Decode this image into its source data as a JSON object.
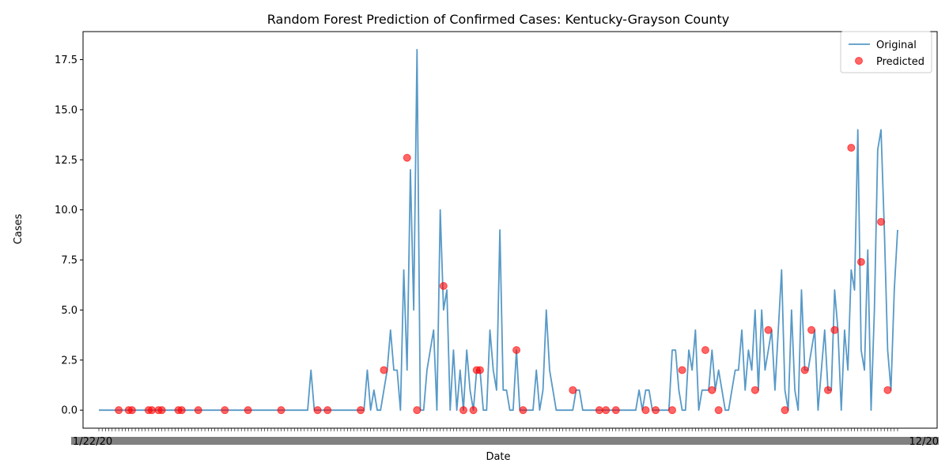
{
  "chart_data": {
    "type": "line",
    "title": "Random Forest Prediction of Confirmed Cases: Kentucky-Grayson County",
    "xlabel": "Date",
    "ylabel": "Cases",
    "ylim": [
      -0.9,
      18.9
    ],
    "yticks": [
      0.0,
      2.5,
      5.0,
      7.5,
      10.0,
      12.5,
      15.0,
      17.5
    ],
    "ytick_labels": [
      "0.0",
      "2.5",
      "5.0",
      "7.5",
      "10.0",
      "12.5",
      "15.0",
      "17.5"
    ],
    "x_tick_labels_visible": [
      "1/22/20",
      "12/20"
    ],
    "grid": false,
    "legend": "top-right",
    "series": [
      {
        "name": "Original",
        "kind": "line",
        "color": "#1f77b4",
        "values": [
          0,
          0,
          0,
          0,
          0,
          0,
          0,
          0,
          0,
          0,
          0,
          0,
          0,
          0,
          0,
          0,
          0,
          0,
          0,
          0,
          0,
          0,
          0,
          0,
          0,
          0,
          0,
          0,
          0,
          0,
          0,
          0,
          0,
          0,
          0,
          0,
          0,
          0,
          0,
          0,
          0,
          0,
          0,
          0,
          0,
          0,
          0,
          0,
          0,
          0,
          0,
          0,
          0,
          0,
          0,
          0,
          0,
          0,
          0,
          0,
          0,
          0,
          0,
          0,
          2,
          0,
          0,
          0,
          0,
          0,
          0,
          0,
          0,
          0,
          0,
          0,
          0,
          0,
          0,
          0,
          0,
          2,
          0,
          1,
          0,
          0,
          1,
          2,
          4,
          2,
          2,
          0,
          7,
          2,
          12,
          5,
          18,
          0,
          0,
          2,
          3,
          4,
          0,
          10,
          5,
          6,
          0,
          3,
          0,
          2,
          0,
          3,
          1,
          0,
          2,
          2,
          0,
          0,
          4,
          2,
          1,
          9,
          1,
          1,
          0,
          0,
          3,
          0,
          0,
          0,
          0,
          0,
          2,
          0,
          1,
          5,
          2,
          1,
          0,
          0,
          0,
          0,
          0,
          0,
          1,
          1,
          0,
          0,
          0,
          0,
          0,
          0,
          0,
          0,
          0,
          0,
          0,
          0,
          0,
          0,
          0,
          0,
          0,
          1,
          0,
          1,
          1,
          0,
          0,
          0,
          0,
          0,
          0,
          3,
          3,
          1,
          0,
          0,
          3,
          2,
          4,
          0,
          1,
          1,
          1,
          3,
          1,
          2,
          1,
          0,
          0,
          1,
          2,
          2,
          4,
          1,
          3,
          2,
          5,
          1,
          5,
          2,
          3,
          4,
          1,
          4,
          7,
          1,
          0,
          5,
          1,
          0,
          6,
          2,
          2,
          3,
          4,
          0,
          2,
          4,
          1,
          1,
          6,
          4,
          0,
          4,
          2,
          7,
          6,
          14,
          3,
          2,
          8,
          0,
          5,
          13,
          14,
          9,
          3,
          1,
          6,
          9
        ]
      },
      {
        "name": "Predicted",
        "kind": "scatter",
        "color": "#ff0000",
        "points": [
          [
            6,
            0
          ],
          [
            9,
            0
          ],
          [
            10,
            0
          ],
          [
            15,
            0
          ],
          [
            16,
            0
          ],
          [
            18,
            0
          ],
          [
            19,
            0
          ],
          [
            24,
            0
          ],
          [
            25,
            0
          ],
          [
            30,
            0
          ],
          [
            38,
            0
          ],
          [
            45,
            0
          ],
          [
            55,
            0
          ],
          [
            66,
            0
          ],
          [
            69,
            0
          ],
          [
            79,
            0
          ],
          [
            86,
            2
          ],
          [
            93,
            12.6
          ],
          [
            96,
            0
          ],
          [
            104,
            6.2
          ],
          [
            110,
            0
          ],
          [
            113,
            0
          ],
          [
            114,
            2
          ],
          [
            115,
            2
          ],
          [
            126,
            3
          ],
          [
            128,
            0
          ],
          [
            143,
            1
          ],
          [
            151,
            0
          ],
          [
            153,
            0
          ],
          [
            156,
            0
          ],
          [
            165,
            0
          ],
          [
            168,
            0
          ],
          [
            173,
            0
          ],
          [
            176,
            2
          ],
          [
            183,
            3
          ],
          [
            185,
            1
          ],
          [
            187,
            0
          ],
          [
            198,
            1
          ],
          [
            202,
            4
          ],
          [
            207,
            0
          ],
          [
            213,
            2
          ],
          [
            215,
            4
          ],
          [
            220,
            1
          ],
          [
            222,
            4
          ],
          [
            227,
            13.1
          ],
          [
            230,
            7.4
          ],
          [
            236,
            9.4
          ],
          [
            238,
            1
          ]
        ]
      }
    ]
  }
}
